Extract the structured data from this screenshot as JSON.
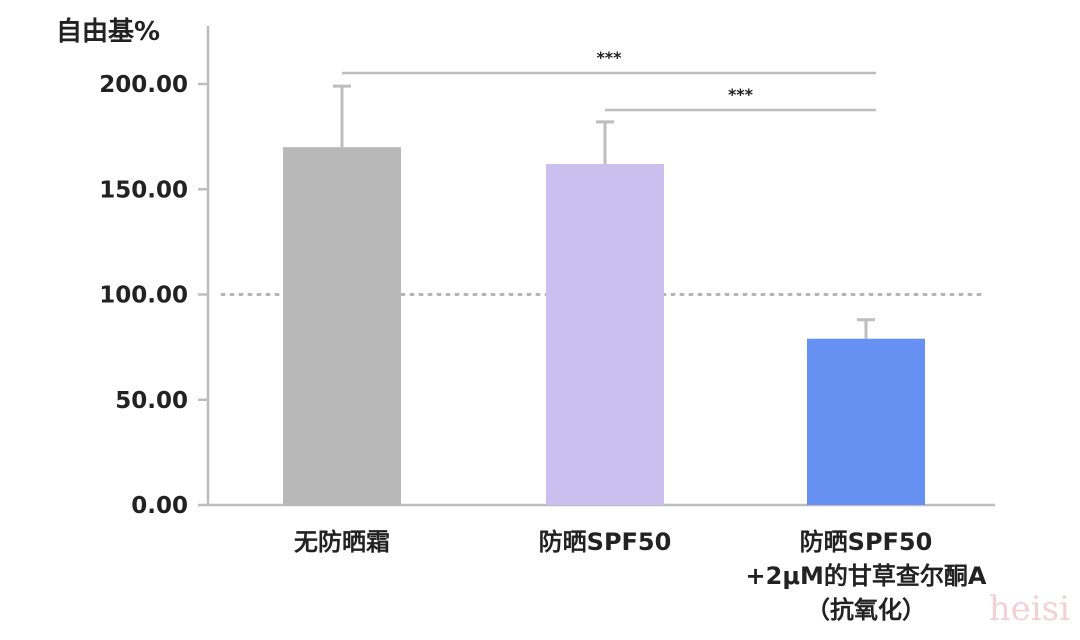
{
  "chart_data": {
    "type": "bar",
    "ylabel": "自由基%",
    "ylim": [
      0,
      200
    ],
    "yticks": [
      "200.00",
      "150.00",
      "100.00",
      "50.00",
      "0.00"
    ],
    "ytick_values": [
      200,
      150,
      100,
      50,
      0
    ],
    "reference_line": {
      "value": 100,
      "style": "dotted",
      "color": "#b4b4b4"
    },
    "categories": [
      {
        "lines": [
          "无防晒霜"
        ]
      },
      {
        "lines": [
          "防晒SPF50"
        ]
      },
      {
        "lines": [
          "防晒SPF50",
          "+2μM的甘草查尔酮A",
          "（抗氧化）"
        ]
      }
    ],
    "values": [
      170,
      162,
      79
    ],
    "error_upper": [
      199,
      182,
      88
    ],
    "colors": [
      "#b8b8b8",
      "#cbbff0",
      "#6690f2"
    ],
    "significance": [
      {
        "from": 0,
        "to": 2,
        "label": "***"
      },
      {
        "from": 1,
        "to": 2,
        "label": "***"
      }
    ],
    "grid": false
  },
  "watermark": "heisi"
}
